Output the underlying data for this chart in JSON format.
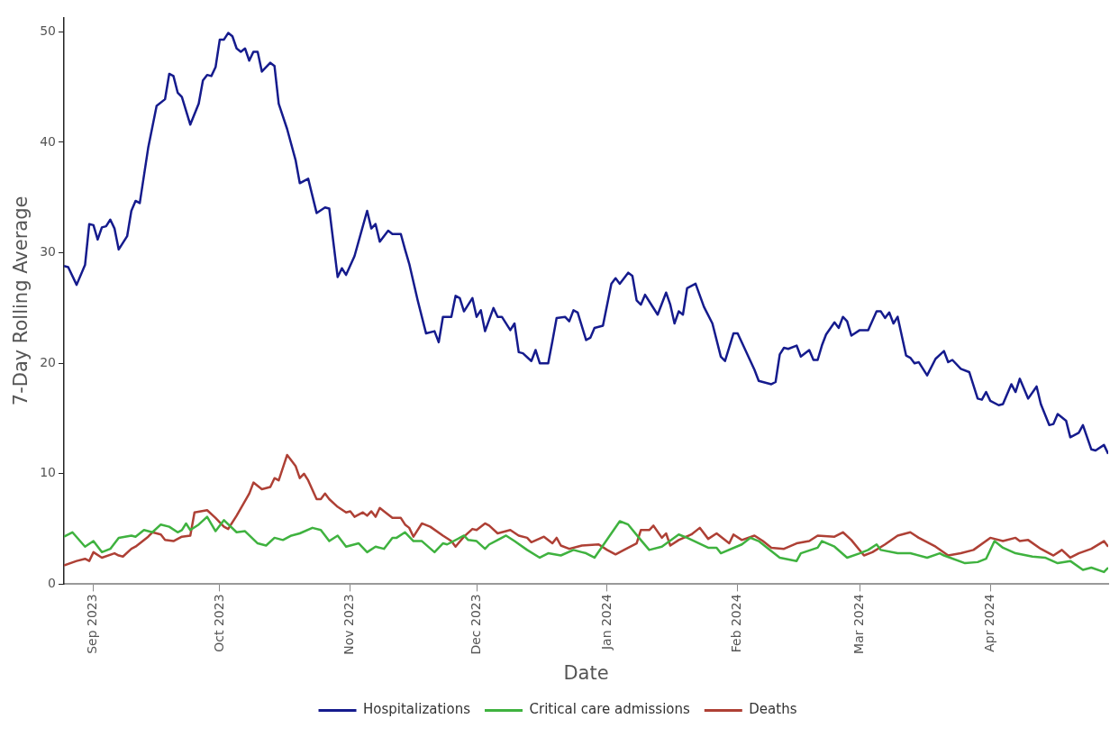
{
  "chart_data": {
    "type": "line",
    "xlabel": "Date",
    "ylabel": "7-Day Rolling Average",
    "xlim": [
      "2023-08-25",
      "2024-04-29"
    ],
    "ylim": [
      0,
      51.3
    ],
    "xticks": [
      {
        "value": "2023-09-01",
        "label": "Sep 2023"
      },
      {
        "value": "2023-10-01",
        "label": "Oct 2023"
      },
      {
        "value": "2023-11-01",
        "label": "Nov 2023"
      },
      {
        "value": "2023-12-01",
        "label": "Dec 2023"
      },
      {
        "value": "2024-01-01",
        "label": "Jan 2024"
      },
      {
        "value": "2024-02-01",
        "label": "Feb 2024"
      },
      {
        "value": "2024-03-01",
        "label": "Mar 2024"
      },
      {
        "value": "2024-04-01",
        "label": "Apr 2024"
      }
    ],
    "yticks": [
      0,
      10,
      20,
      30,
      40,
      50
    ],
    "grid": false,
    "legend": "bottom",
    "marker": "none",
    "line_style": "solid",
    "series": [
      {
        "name": "Hospitalizations",
        "color": "#151b8d",
        "x": [
          "2023-08-25",
          "2023-08-26",
          "2023-08-28",
          "2023-08-30",
          "2023-08-31",
          "2023-09-01",
          "2023-09-02",
          "2023-09-03",
          "2023-09-04",
          "2023-09-05",
          "2023-09-06",
          "2023-09-07",
          "2023-09-09",
          "2023-09-10",
          "2023-09-11",
          "2023-09-12",
          "2023-09-14",
          "2023-09-16",
          "2023-09-18",
          "2023-09-19",
          "2023-09-20",
          "2023-09-21",
          "2023-09-22",
          "2023-09-24",
          "2023-09-26",
          "2023-09-27",
          "2023-09-28",
          "2023-09-29",
          "2023-09-30",
          "2023-10-01",
          "2023-10-02",
          "2023-10-03",
          "2023-10-04",
          "2023-10-05",
          "2023-10-06",
          "2023-10-07",
          "2023-10-08",
          "2023-10-09",
          "2023-10-10",
          "2023-10-11",
          "2023-10-13",
          "2023-10-14",
          "2023-10-15",
          "2023-10-17",
          "2023-10-19",
          "2023-10-20",
          "2023-10-22",
          "2023-10-24",
          "2023-10-26",
          "2023-10-27",
          "2023-10-29",
          "2023-10-30",
          "2023-10-31",
          "2023-11-02",
          "2023-11-05",
          "2023-11-06",
          "2023-11-07",
          "2023-11-08",
          "2023-11-10",
          "2023-11-11",
          "2023-11-13",
          "2023-11-14",
          "2023-11-15",
          "2023-11-17",
          "2023-11-19",
          "2023-11-21",
          "2023-11-22",
          "2023-11-23",
          "2023-11-25",
          "2023-11-26",
          "2023-11-27",
          "2023-11-28",
          "2023-11-30",
          "2023-12-01",
          "2023-12-02",
          "2023-12-03",
          "2023-12-05",
          "2023-12-06",
          "2023-12-07",
          "2023-12-09",
          "2023-12-10",
          "2023-12-11",
          "2023-12-12",
          "2023-12-14",
          "2023-12-15",
          "2023-12-16",
          "2023-12-18",
          "2023-12-19",
          "2023-12-20",
          "2023-12-22",
          "2023-12-23",
          "2023-12-24",
          "2023-12-25",
          "2023-12-27",
          "2023-12-28",
          "2023-12-29",
          "2023-12-31",
          "2024-01-02",
          "2024-01-03",
          "2024-01-04",
          "2024-01-06",
          "2024-01-07",
          "2024-01-08",
          "2024-01-09",
          "2024-01-10",
          "2024-01-11",
          "2024-01-13",
          "2024-01-15",
          "2024-01-16",
          "2024-01-17",
          "2024-01-18",
          "2024-01-19",
          "2024-01-20",
          "2024-01-22",
          "2024-01-24",
          "2024-01-26",
          "2024-01-28",
          "2024-01-29",
          "2024-01-31",
          "2024-02-01",
          "2024-02-05",
          "2024-02-06",
          "2024-02-08",
          "2024-02-09",
          "2024-02-10",
          "2024-02-11",
          "2024-02-12",
          "2024-02-13",
          "2024-02-15",
          "2024-02-16",
          "2024-02-18",
          "2024-02-19",
          "2024-02-20",
          "2024-02-21",
          "2024-02-22",
          "2024-02-24",
          "2024-02-25",
          "2024-02-26",
          "2024-02-27",
          "2024-02-28",
          "2024-03-01",
          "2024-03-03",
          "2024-03-05",
          "2024-03-06",
          "2024-03-07",
          "2024-03-08",
          "2024-03-09",
          "2024-03-10",
          "2024-03-12",
          "2024-03-13",
          "2024-03-14",
          "2024-03-15",
          "2024-03-17",
          "2024-03-19",
          "2024-03-21",
          "2024-03-22",
          "2024-03-23",
          "2024-03-25",
          "2024-03-27",
          "2024-03-29",
          "2024-03-30",
          "2024-03-31",
          "2024-04-01",
          "2024-04-03",
          "2024-04-04",
          "2024-04-06",
          "2024-04-07",
          "2024-04-08",
          "2024-04-10",
          "2024-04-12",
          "2024-04-13",
          "2024-04-15",
          "2024-04-16",
          "2024-04-17",
          "2024-04-19",
          "2024-04-20",
          "2024-04-22",
          "2024-04-23",
          "2024-04-25",
          "2024-04-26",
          "2024-04-28",
          "2024-04-29"
        ],
        "values": [
          28.8,
          28.7,
          27.1,
          28.9,
          32.6,
          32.5,
          31.2,
          32.3,
          32.4,
          33.0,
          32.2,
          30.3,
          31.5,
          33.8,
          34.7,
          34.5,
          39.5,
          43.3,
          43.9,
          46.2,
          46.0,
          44.5,
          44.1,
          41.6,
          43.5,
          45.6,
          46.1,
          46.0,
          46.8,
          49.3,
          49.3,
          49.9,
          49.6,
          48.5,
          48.2,
          48.5,
          47.4,
          48.2,
          48.2,
          46.4,
          47.2,
          46.9,
          43.5,
          41.2,
          38.4,
          36.3,
          36.7,
          33.6,
          34.1,
          34.0,
          27.8,
          28.6,
          28.0,
          29.7,
          33.8,
          32.2,
          32.6,
          31.0,
          32.0,
          31.7,
          31.7,
          30.3,
          29.0,
          25.7,
          22.7,
          22.9,
          21.9,
          24.2,
          24.2,
          26.1,
          25.9,
          24.7,
          25.9,
          24.2,
          24.8,
          22.9,
          25.0,
          24.2,
          24.2,
          23.0,
          23.6,
          21.0,
          20.9,
          20.2,
          21.2,
          20.0,
          20.0,
          22.0,
          24.1,
          24.2,
          23.8,
          24.8,
          24.6,
          22.1,
          22.3,
          23.2,
          23.4,
          27.2,
          27.7,
          27.2,
          28.2,
          27.9,
          25.7,
          25.3,
          26.2,
          25.6,
          24.4,
          26.4,
          25.3,
          23.6,
          24.7,
          24.4,
          26.8,
          27.2,
          25.1,
          23.6,
          20.6,
          20.2,
          22.7,
          22.7,
          19.4,
          18.4,
          18.2,
          18.1,
          18.3,
          20.8,
          21.4,
          21.3,
          21.6,
          20.6,
          21.2,
          20.3,
          20.3,
          21.6,
          22.6,
          23.7,
          23.2,
          24.2,
          23.8,
          22.5,
          23.0,
          23.0,
          24.7,
          24.7,
          24.1,
          24.6,
          23.6,
          24.2,
          20.7,
          20.5,
          20.0,
          20.1,
          18.9,
          20.4,
          21.1,
          20.1,
          20.3,
          19.5,
          19.2,
          16.8,
          16.7,
          17.4,
          16.6,
          16.2,
          16.3,
          18.1,
          17.4,
          18.6,
          16.8,
          17.9,
          16.3,
          14.4,
          14.5,
          15.4,
          14.8,
          13.3,
          13.7,
          14.4,
          12.2,
          12.1,
          12.6,
          11.8
        ]
      },
      {
        "name": "Critical care admissions",
        "color": "#3fb23f",
        "x": [
          "2023-08-25",
          "2023-08-27",
          "2023-08-30",
          "2023-09-01",
          "2023-09-03",
          "2023-09-05",
          "2023-09-07",
          "2023-09-10",
          "2023-09-11",
          "2023-09-13",
          "2023-09-15",
          "2023-09-17",
          "2023-09-19",
          "2023-09-21",
          "2023-09-22",
          "2023-09-23",
          "2023-09-24",
          "2023-09-26",
          "2023-09-28",
          "2023-09-30",
          "2023-10-02",
          "2023-10-05",
          "2023-10-07",
          "2023-10-10",
          "2023-10-12",
          "2023-10-14",
          "2023-10-16",
          "2023-10-18",
          "2023-10-20",
          "2023-10-23",
          "2023-10-25",
          "2023-10-27",
          "2023-10-29",
          "2023-10-31",
          "2023-11-03",
          "2023-11-05",
          "2023-11-07",
          "2023-11-09",
          "2023-11-11",
          "2023-11-12",
          "2023-11-14",
          "2023-11-16",
          "2023-11-18",
          "2023-11-21",
          "2023-11-23",
          "2023-11-24",
          "2023-11-28",
          "2023-11-29",
          "2023-12-01",
          "2023-12-03",
          "2023-12-04",
          "2023-12-06",
          "2023-12-08",
          "2023-12-10",
          "2023-12-13",
          "2023-12-16",
          "2023-12-18",
          "2023-12-21",
          "2023-12-24",
          "2023-12-26",
          "2023-12-27",
          "2023-12-29",
          "2024-01-04",
          "2024-01-06",
          "2024-01-09",
          "2024-01-11",
          "2024-01-14",
          "2024-01-18",
          "2024-01-20",
          "2024-01-25",
          "2024-01-27",
          "2024-01-28",
          "2024-02-02",
          "2024-02-04",
          "2024-02-06",
          "2024-02-08",
          "2024-02-11",
          "2024-02-15",
          "2024-02-16",
          "2024-02-20",
          "2024-02-21",
          "2024-02-24",
          "2024-02-27",
          "2024-03-01",
          "2024-03-03",
          "2024-03-05",
          "2024-03-06",
          "2024-03-10",
          "2024-03-13",
          "2024-03-17",
          "2024-03-20",
          "2024-03-21",
          "2024-03-26",
          "2024-03-29",
          "2024-03-31",
          "2024-04-02",
          "2024-04-04",
          "2024-04-07",
          "2024-04-11",
          "2024-04-14",
          "2024-04-17",
          "2024-04-20",
          "2024-04-23",
          "2024-04-25",
          "2024-04-28",
          "2024-04-29"
        ],
        "values": [
          4.3,
          4.7,
          3.4,
          3.9,
          2.9,
          3.2,
          4.2,
          4.4,
          4.3,
          4.9,
          4.7,
          5.4,
          5.2,
          4.7,
          4.9,
          5.5,
          4.9,
          5.4,
          6.1,
          4.8,
          5.8,
          4.7,
          4.8,
          3.7,
          3.5,
          4.2,
          4.0,
          4.4,
          4.6,
          5.1,
          4.9,
          3.9,
          4.4,
          3.4,
          3.7,
          2.9,
          3.4,
          3.2,
          4.2,
          4.2,
          4.7,
          3.9,
          3.9,
          2.9,
          3.7,
          3.6,
          4.4,
          4.0,
          3.9,
          3.2,
          3.6,
          4.0,
          4.4,
          3.9,
          3.1,
          2.4,
          2.8,
          2.6,
          3.1,
          2.9,
          2.8,
          2.4,
          5.7,
          5.4,
          4.0,
          3.1,
          3.4,
          4.5,
          4.2,
          3.3,
          3.3,
          2.8,
          3.6,
          4.2,
          3.9,
          3.3,
          2.4,
          2.1,
          2.8,
          3.3,
          3.9,
          3.4,
          2.4,
          2.8,
          3.1,
          3.6,
          3.1,
          2.8,
          2.8,
          2.4,
          2.8,
          2.6,
          1.9,
          2.0,
          2.3,
          3.9,
          3.3,
          2.8,
          2.5,
          2.4,
          1.9,
          2.1,
          1.3,
          1.5,
          1.1,
          1.5
        ]
      },
      {
        "name": "Deaths",
        "color": "#ae4035",
        "x": [
          "2023-08-25",
          "2023-08-28",
          "2023-08-30",
          "2023-08-31",
          "2023-09-01",
          "2023-09-03",
          "2023-09-06",
          "2023-09-07",
          "2023-09-08",
          "2023-09-10",
          "2023-09-11",
          "2023-09-14",
          "2023-09-15",
          "2023-09-17",
          "2023-09-18",
          "2023-09-20",
          "2023-09-22",
          "2023-09-24",
          "2023-09-25",
          "2023-09-28",
          "2023-09-30",
          "2023-10-02",
          "2023-10-03",
          "2023-10-05",
          "2023-10-08",
          "2023-10-09",
          "2023-10-11",
          "2023-10-13",
          "2023-10-14",
          "2023-10-15",
          "2023-10-17",
          "2023-10-19",
          "2023-10-20",
          "2023-10-21",
          "2023-10-22",
          "2023-10-24",
          "2023-10-25",
          "2023-10-26",
          "2023-10-27",
          "2023-10-29",
          "2023-10-31",
          "2023-11-01",
          "2023-11-02",
          "2023-11-04",
          "2023-11-05",
          "2023-11-06",
          "2023-11-07",
          "2023-11-08",
          "2023-11-09",
          "2023-11-11",
          "2023-11-13",
          "2023-11-14",
          "2023-11-15",
          "2023-11-16",
          "2023-11-18",
          "2023-11-20",
          "2023-11-23",
          "2023-11-25",
          "2023-11-26",
          "2023-11-28",
          "2023-11-30",
          "2023-12-01",
          "2023-12-03",
          "2023-12-04",
          "2023-12-06",
          "2023-12-09",
          "2023-12-11",
          "2023-12-13",
          "2023-12-14",
          "2023-12-17",
          "2023-12-19",
          "2023-12-20",
          "2023-12-21",
          "2023-12-23",
          "2023-12-25",
          "2023-12-26",
          "2023-12-30",
          "2024-01-01",
          "2024-01-03",
          "2024-01-05",
          "2024-01-08",
          "2024-01-09",
          "2024-01-11",
          "2024-01-12",
          "2024-01-14",
          "2024-01-15",
          "2024-01-16",
          "2024-01-18",
          "2024-01-21",
          "2024-01-23",
          "2024-01-25",
          "2024-01-27",
          "2024-01-30",
          "2024-01-31",
          "2024-02-02",
          "2024-02-05",
          "2024-02-07",
          "2024-02-09",
          "2024-02-12",
          "2024-02-15",
          "2024-02-18",
          "2024-02-20",
          "2024-02-24",
          "2024-02-26",
          "2024-02-28",
          "2024-03-02",
          "2024-03-04",
          "2024-03-07",
          "2024-03-10",
          "2024-03-13",
          "2024-03-15",
          "2024-03-19",
          "2024-03-22",
          "2024-03-25",
          "2024-03-28",
          "2024-04-01",
          "2024-04-04",
          "2024-04-07",
          "2024-04-08",
          "2024-04-10",
          "2024-04-13",
          "2024-04-16",
          "2024-04-18",
          "2024-04-20",
          "2024-04-22",
          "2024-04-25",
          "2024-04-28",
          "2024-04-29"
        ],
        "values": [
          1.7,
          2.1,
          2.3,
          2.1,
          2.9,
          2.4,
          2.8,
          2.6,
          2.5,
          3.2,
          3.4,
          4.3,
          4.7,
          4.5,
          4.0,
          3.9,
          4.3,
          4.4,
          6.5,
          6.7,
          6.0,
          5.2,
          5.0,
          6.2,
          8.2,
          9.2,
          8.6,
          8.8,
          9.6,
          9.4,
          11.7,
          10.7,
          9.6,
          10.0,
          9.4,
          7.7,
          7.7,
          8.2,
          7.7,
          7.0,
          6.5,
          6.6,
          6.1,
          6.5,
          6.2,
          6.6,
          6.1,
          6.9,
          6.6,
          6.0,
          6.0,
          5.4,
          5.1,
          4.3,
          5.5,
          5.2,
          4.4,
          3.9,
          3.4,
          4.3,
          5.0,
          4.9,
          5.5,
          5.3,
          4.6,
          4.9,
          4.4,
          4.2,
          3.8,
          4.3,
          3.7,
          4.2,
          3.5,
          3.2,
          3.4,
          3.5,
          3.6,
          3.1,
          2.7,
          3.1,
          3.7,
          4.9,
          4.9,
          5.3,
          4.2,
          4.6,
          3.5,
          4.0,
          4.5,
          5.1,
          4.1,
          4.6,
          3.7,
          4.5,
          4.0,
          4.4,
          3.9,
          3.3,
          3.2,
          3.7,
          3.9,
          4.4,
          4.3,
          4.7,
          4.0,
          2.6,
          2.9,
          3.6,
          4.4,
          4.7,
          4.2,
          3.4,
          2.6,
          2.8,
          3.1,
          4.2,
          3.9,
          4.2,
          3.9,
          4.0,
          3.2,
          2.6,
          3.1,
          2.4,
          2.8,
          3.2,
          3.9,
          3.4
        ]
      }
    ]
  }
}
